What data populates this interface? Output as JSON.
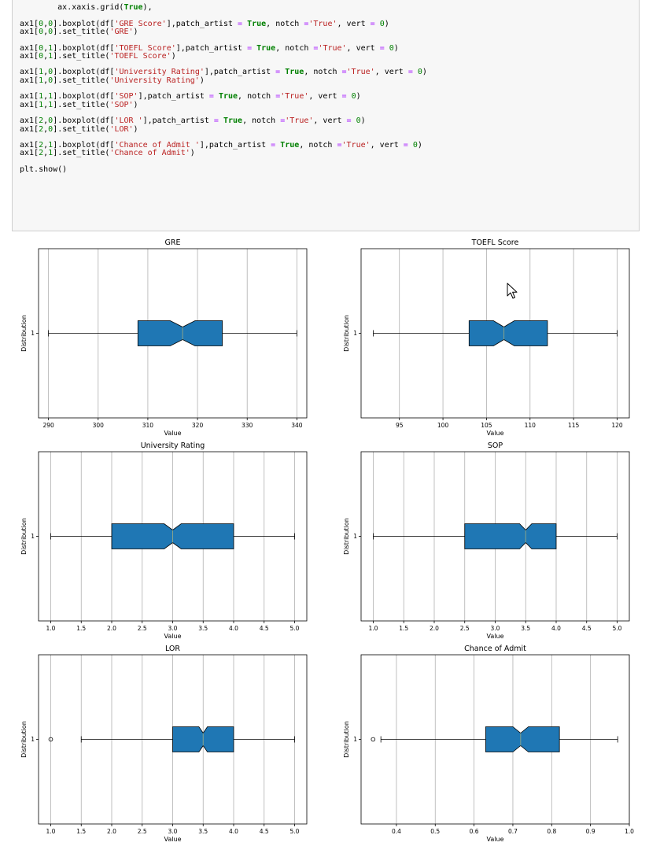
{
  "code_cell": {
    "lines": [
      [
        [
          "        ax.xaxis.grid(",
          ""
        ],
        [
          "True",
          "kw"
        ],
        [
          "),",
          ""
        ]
      ],
      [],
      [
        [
          "ax1[",
          ""
        ],
        [
          "0",
          "num"
        ],
        [
          ",",
          ""
        ],
        [
          "0",
          "num"
        ],
        [
          "].boxplot(df[",
          ""
        ],
        [
          "'GRE Score'",
          "str"
        ],
        [
          "],patch_artist ",
          ""
        ],
        [
          "=",
          "op"
        ],
        [
          " ",
          ""
        ],
        [
          "True",
          "kw"
        ],
        [
          ", notch ",
          ""
        ],
        [
          "=",
          "op"
        ],
        [
          "'True'",
          "str"
        ],
        [
          ", vert ",
          ""
        ],
        [
          "=",
          "op"
        ],
        [
          " ",
          ""
        ],
        [
          "0",
          "num"
        ],
        [
          ")",
          ""
        ]
      ],
      [
        [
          "ax1[",
          ""
        ],
        [
          "0",
          "num"
        ],
        [
          ",",
          ""
        ],
        [
          "0",
          "num"
        ],
        [
          "].set_title(",
          ""
        ],
        [
          "'GRE'",
          "str"
        ],
        [
          ")",
          ""
        ]
      ],
      [],
      [
        [
          "ax1[",
          ""
        ],
        [
          "0",
          "num"
        ],
        [
          ",",
          ""
        ],
        [
          "1",
          "num"
        ],
        [
          "].boxplot(df[",
          ""
        ],
        [
          "'TOEFL Score'",
          "str"
        ],
        [
          "],patch_artist ",
          ""
        ],
        [
          "=",
          "op"
        ],
        [
          " ",
          ""
        ],
        [
          "True",
          "kw"
        ],
        [
          ", notch ",
          ""
        ],
        [
          "=",
          "op"
        ],
        [
          "'True'",
          "str"
        ],
        [
          ", vert ",
          ""
        ],
        [
          "=",
          "op"
        ],
        [
          " ",
          ""
        ],
        [
          "0",
          "num"
        ],
        [
          ")",
          ""
        ]
      ],
      [
        [
          "ax1[",
          ""
        ],
        [
          "0",
          "num"
        ],
        [
          ",",
          ""
        ],
        [
          "1",
          "num"
        ],
        [
          "].set_title(",
          ""
        ],
        [
          "'TOEFL Score'",
          "str"
        ],
        [
          ")",
          ""
        ]
      ],
      [],
      [
        [
          "ax1[",
          ""
        ],
        [
          "1",
          "num"
        ],
        [
          ",",
          ""
        ],
        [
          "0",
          "num"
        ],
        [
          "].boxplot(df[",
          ""
        ],
        [
          "'University Rating'",
          "str"
        ],
        [
          "],patch_artist ",
          ""
        ],
        [
          "=",
          "op"
        ],
        [
          " ",
          ""
        ],
        [
          "True",
          "kw"
        ],
        [
          ", notch ",
          ""
        ],
        [
          "=",
          "op"
        ],
        [
          "'True'",
          "str"
        ],
        [
          ", vert ",
          ""
        ],
        [
          "=",
          "op"
        ],
        [
          " ",
          ""
        ],
        [
          "0",
          "num"
        ],
        [
          ")",
          ""
        ]
      ],
      [
        [
          "ax1[",
          ""
        ],
        [
          "1",
          "num"
        ],
        [
          ",",
          ""
        ],
        [
          "0",
          "num"
        ],
        [
          "].set_title(",
          ""
        ],
        [
          "'University Rating'",
          "str"
        ],
        [
          ")",
          ""
        ]
      ],
      [],
      [
        [
          "ax1[",
          ""
        ],
        [
          "1",
          "num"
        ],
        [
          ",",
          ""
        ],
        [
          "1",
          "num"
        ],
        [
          "].boxplot(df[",
          ""
        ],
        [
          "'SOP'",
          "str"
        ],
        [
          "],patch_artist ",
          ""
        ],
        [
          "=",
          "op"
        ],
        [
          " ",
          ""
        ],
        [
          "True",
          "kw"
        ],
        [
          ", notch ",
          ""
        ],
        [
          "=",
          "op"
        ],
        [
          "'True'",
          "str"
        ],
        [
          ", vert ",
          ""
        ],
        [
          "=",
          "op"
        ],
        [
          " ",
          ""
        ],
        [
          "0",
          "num"
        ],
        [
          ")",
          ""
        ]
      ],
      [
        [
          "ax1[",
          ""
        ],
        [
          "1",
          "num"
        ],
        [
          ",",
          ""
        ],
        [
          "1",
          "num"
        ],
        [
          "].set_title(",
          ""
        ],
        [
          "'SOP'",
          "str"
        ],
        [
          ")",
          ""
        ]
      ],
      [],
      [
        [
          "ax1[",
          ""
        ],
        [
          "2",
          "num"
        ],
        [
          ",",
          ""
        ],
        [
          "0",
          "num"
        ],
        [
          "].boxplot(df[",
          ""
        ],
        [
          "'LOR '",
          "str"
        ],
        [
          "],patch_artist ",
          ""
        ],
        [
          "=",
          "op"
        ],
        [
          " ",
          ""
        ],
        [
          "True",
          "kw"
        ],
        [
          ", notch ",
          ""
        ],
        [
          "=",
          "op"
        ],
        [
          "'True'",
          "str"
        ],
        [
          ", vert ",
          ""
        ],
        [
          "=",
          "op"
        ],
        [
          " ",
          ""
        ],
        [
          "0",
          "num"
        ],
        [
          ")",
          ""
        ]
      ],
      [
        [
          "ax1[",
          ""
        ],
        [
          "2",
          "num"
        ],
        [
          ",",
          ""
        ],
        [
          "0",
          "num"
        ],
        [
          "].set_title(",
          ""
        ],
        [
          "'LOR'",
          "str"
        ],
        [
          ")",
          ""
        ]
      ],
      [],
      [
        [
          "ax1[",
          ""
        ],
        [
          "2",
          "num"
        ],
        [
          ",",
          ""
        ],
        [
          "1",
          "num"
        ],
        [
          "].boxplot(df[",
          ""
        ],
        [
          "'Chance of Admit '",
          "str"
        ],
        [
          "],patch_artist ",
          ""
        ],
        [
          "=",
          "op"
        ],
        [
          " ",
          ""
        ],
        [
          "True",
          "kw"
        ],
        [
          ", notch ",
          ""
        ],
        [
          "=",
          "op"
        ],
        [
          "'True'",
          "str"
        ],
        [
          ", vert ",
          ""
        ],
        [
          "=",
          "op"
        ],
        [
          " ",
          ""
        ],
        [
          "0",
          "num"
        ],
        [
          ")",
          ""
        ]
      ],
      [
        [
          "ax1[",
          ""
        ],
        [
          "2",
          "num"
        ],
        [
          ",",
          ""
        ],
        [
          "1",
          "num"
        ],
        [
          "].set_title(",
          ""
        ],
        [
          "'Chance of Admit'",
          "str"
        ],
        [
          ")",
          ""
        ]
      ],
      [],
      [
        [
          "plt.show()",
          ""
        ]
      ]
    ]
  },
  "colors": {
    "box_fill": "#1f77b4",
    "median": "#87a38c",
    "grid": "#b0b0b0"
  },
  "chart_data": [
    {
      "type": "boxplot",
      "title": "GRE",
      "xlabel": "Value",
      "ylabel": "Distribution",
      "y_tick_label": "1",
      "xlim": [
        288,
        342
      ],
      "x_ticks": [
        290,
        300,
        310,
        320,
        330,
        340
      ],
      "x_tick_labels": [
        "290",
        "300",
        "310",
        "320",
        "330",
        "340"
      ],
      "whisker_low": 290,
      "q1": 308,
      "median": 317,
      "q3": 325,
      "whisker_high": 340,
      "notch_low": 314.5,
      "notch_high": 319.5,
      "outliers": [],
      "grid": true
    },
    {
      "type": "boxplot",
      "title": "TOEFL Score",
      "xlabel": "Value",
      "ylabel": "Distribution",
      "y_tick_label": "1",
      "xlim": [
        90.6,
        121.4
      ],
      "x_ticks": [
        95,
        100,
        105,
        110,
        115,
        120
      ],
      "x_tick_labels": [
        "95",
        "100",
        "105",
        "110",
        "115",
        "120"
      ],
      "whisker_low": 92,
      "q1": 103,
      "median": 107,
      "q3": 112,
      "whisker_high": 120,
      "notch_low": 105.8,
      "notch_high": 108.2,
      "outliers": [],
      "grid": true
    },
    {
      "type": "boxplot",
      "title": "University Rating",
      "xlabel": "Value",
      "ylabel": "Distribution",
      "y_tick_label": "1",
      "xlim": [
        0.8,
        5.2
      ],
      "x_ticks": [
        1.0,
        1.5,
        2.0,
        2.5,
        3.0,
        3.5,
        4.0,
        4.5,
        5.0
      ],
      "x_tick_labels": [
        "1.0",
        "1.5",
        "2.0",
        "2.5",
        "3.0",
        "3.5",
        "4.0",
        "4.5",
        "5.0"
      ],
      "whisker_low": 1.0,
      "q1": 2.0,
      "median": 3.0,
      "q3": 4.0,
      "whisker_high": 5.0,
      "notch_low": 2.86,
      "notch_high": 3.14,
      "outliers": [],
      "grid": true
    },
    {
      "type": "boxplot",
      "title": "SOP",
      "xlabel": "Value",
      "ylabel": "Distribution",
      "y_tick_label": "1",
      "xlim": [
        0.8,
        5.2
      ],
      "x_ticks": [
        1.0,
        1.5,
        2.0,
        2.5,
        3.0,
        3.5,
        4.0,
        4.5,
        5.0
      ],
      "x_tick_labels": [
        "1.0",
        "1.5",
        "2.0",
        "2.5",
        "3.0",
        "3.5",
        "4.0",
        "4.5",
        "5.0"
      ],
      "whisker_low": 1.0,
      "q1": 2.5,
      "median": 3.5,
      "q3": 4.0,
      "whisker_high": 5.0,
      "notch_low": 3.4,
      "notch_high": 3.6,
      "outliers": [],
      "grid": true
    },
    {
      "type": "boxplot",
      "title": "LOR",
      "xlabel": "Value",
      "ylabel": "Distribution",
      "y_tick_label": "1",
      "xlim": [
        0.8,
        5.2
      ],
      "x_ticks": [
        1.0,
        1.5,
        2.0,
        2.5,
        3.0,
        3.5,
        4.0,
        4.5,
        5.0
      ],
      "x_tick_labels": [
        "1.0",
        "1.5",
        "2.0",
        "2.5",
        "3.0",
        "3.5",
        "4.0",
        "4.5",
        "5.0"
      ],
      "whisker_low": 1.5,
      "q1": 3.0,
      "median": 3.5,
      "q3": 4.0,
      "whisker_high": 5.0,
      "notch_low": 3.43,
      "notch_high": 3.57,
      "outliers": [
        1.0
      ],
      "grid": true
    },
    {
      "type": "boxplot",
      "title": "Chance of Admit",
      "xlabel": "Value",
      "ylabel": "Distribution",
      "y_tick_label": "1",
      "xlim": [
        0.309,
        1.0
      ],
      "x_ticks": [
        0.4,
        0.5,
        0.6,
        0.7,
        0.8,
        0.9,
        1.0
      ],
      "x_tick_labels": [
        "0.4",
        "0.5",
        "0.6",
        "0.7",
        "0.8",
        "0.9",
        "1.0"
      ],
      "whisker_low": 0.36,
      "q1": 0.63,
      "median": 0.72,
      "q3": 0.82,
      "whisker_high": 0.97,
      "notch_low": 0.7,
      "notch_high": 0.74,
      "outliers": [
        0.34
      ],
      "grid": true
    }
  ]
}
